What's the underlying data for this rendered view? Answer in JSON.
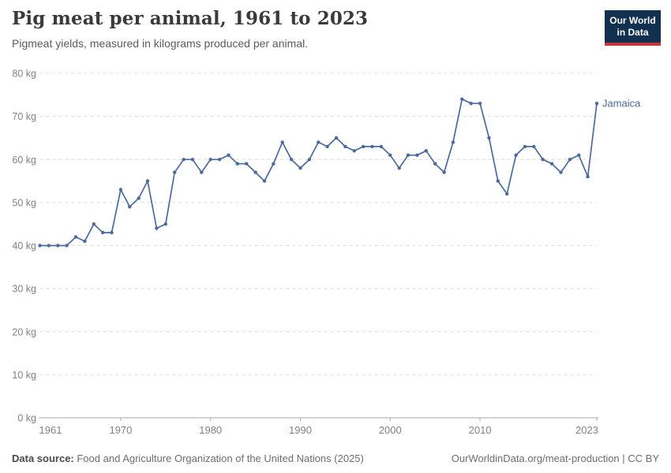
{
  "header": {
    "title": "Pig meat per animal, 1961 to 2023",
    "subtitle": "Pigmeat yields, measured in kilograms produced per animal.",
    "logo": {
      "line1": "Our World",
      "line2": "in Data"
    }
  },
  "chart_data": {
    "type": "line",
    "title": "Pig meat per animal, 1961 to 2023",
    "subtitle": "Pigmeat yields, measured in kilograms produced per animal.",
    "xlabel": "",
    "ylabel": "kg",
    "xlim": [
      1961,
      2023
    ],
    "ylim": [
      0,
      80
    ],
    "grid": true,
    "grid_style": "dashed",
    "x_ticks": [
      1961,
      1970,
      1980,
      1990,
      2000,
      2010,
      2023
    ],
    "y_ticks": [
      0,
      10,
      20,
      30,
      40,
      50,
      60,
      70,
      80
    ],
    "y_tick_suffix": " kg",
    "legend_position": "end-of-line",
    "series": [
      {
        "name": "Jamaica",
        "color": "#4C6A9C",
        "x": [
          1961,
          1962,
          1963,
          1964,
          1965,
          1966,
          1967,
          1968,
          1969,
          1970,
          1971,
          1972,
          1973,
          1974,
          1975,
          1976,
          1977,
          1978,
          1979,
          1980,
          1981,
          1982,
          1983,
          1984,
          1985,
          1986,
          1987,
          1988,
          1989,
          1990,
          1991,
          1992,
          1993,
          1994,
          1995,
          1996,
          1997,
          1998,
          1999,
          2000,
          2001,
          2002,
          2003,
          2004,
          2005,
          2006,
          2007,
          2008,
          2009,
          2010,
          2011,
          2012,
          2013,
          2014,
          2015,
          2016,
          2017,
          2018,
          2019,
          2020,
          2021,
          2022,
          2023
        ],
        "values": [
          40,
          40,
          40,
          40,
          42,
          41,
          45,
          43,
          43,
          53,
          49,
          51,
          55,
          44,
          45,
          57,
          60,
          60,
          57,
          60,
          60,
          61,
          59,
          59,
          57,
          55,
          59,
          64,
          60,
          58,
          60,
          64,
          63,
          65,
          63,
          62,
          63,
          63,
          63,
          61,
          58,
          61,
          61,
          62,
          59,
          57,
          64,
          74,
          73,
          73,
          65,
          55,
          52,
          61,
          63,
          63,
          60,
          59,
          57,
          60,
          61,
          56,
          73
        ]
      }
    ]
  },
  "footer": {
    "source_label": "Data source:",
    "source_text": " Food and Agriculture Organization of the United Nations (2025)",
    "link_text": "OurWorldinData.org/meat-production | CC BY"
  },
  "colors": {
    "line": "#4C6A9C",
    "gridline": "#dcdcdc",
    "axis": "#a8a8a8",
    "tick_label": "#828282",
    "logo_bg": "#12304F",
    "logo_stripe": "#C5353C"
  }
}
